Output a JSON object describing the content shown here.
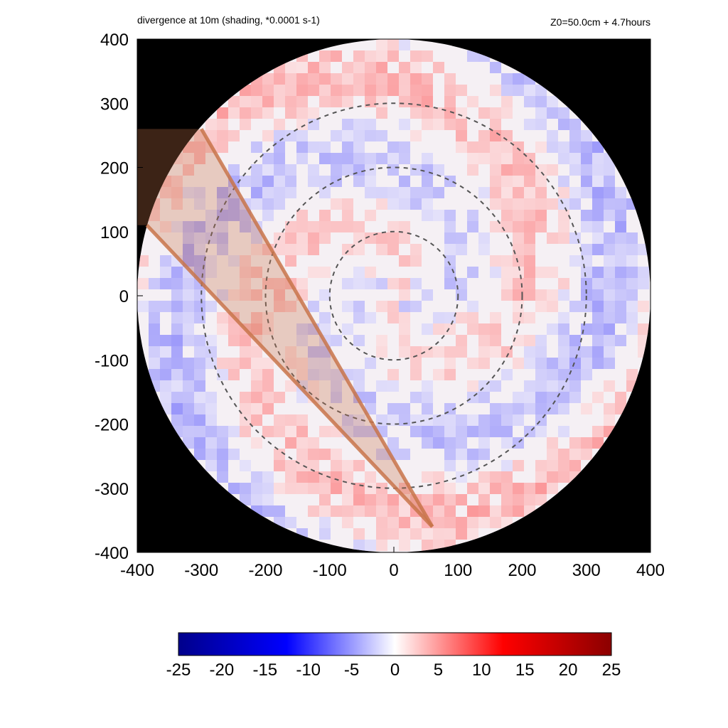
{
  "chart_data": {
    "type": "heatmap",
    "title": "divergence at 10m (shading, *0.0001 s-1)",
    "subtitle": "Z0=50.0cm  + 4.7hours",
    "xlabel": "",
    "ylabel": "",
    "xlim": [
      -400,
      400
    ],
    "ylim": [
      -400,
      400
    ],
    "x_ticks": [
      -400,
      -300,
      -200,
      -100,
      0,
      100,
      200,
      300,
      400
    ],
    "y_ticks": [
      -400,
      -300,
      -200,
      -100,
      0,
      100,
      200,
      300,
      400
    ],
    "x_tick_labels": [
      "-400",
      "-300",
      "-200",
      "-100",
      "0",
      "100",
      "200",
      "300",
      "400"
    ],
    "y_tick_labels": [
      "400",
      "300",
      "200",
      "100",
      "0",
      "-100",
      "-200",
      "-300",
      "-400"
    ],
    "domain_radius": 400,
    "outside_domain_color": "#000000",
    "dashed_circles": [
      {
        "center": [
          0,
          0
        ],
        "radius": 100
      },
      {
        "center": [
          0,
          0
        ],
        "radius": 200
      },
      {
        "center": [
          0,
          0
        ],
        "radius": 300
      }
    ],
    "wedge": {
      "apex": [
        60,
        -360
      ],
      "edge_ends": [
        [
          -300,
          260
        ],
        [
          -385,
          110
        ]
      ],
      "color": "#c8744a"
    },
    "colorbar": {
      "min": -25,
      "max": 25,
      "ticks": [
        -25,
        -20,
        -15,
        -10,
        -5,
        0,
        5,
        10,
        15,
        20,
        25
      ],
      "tick_labels": [
        "-25",
        "-20",
        "-15",
        "-10",
        "-5",
        "0",
        "5",
        "10",
        "15",
        "20",
        "25"
      ],
      "colors": [
        "#00008b",
        "#0000ff",
        "#ffffff",
        "#ff0000",
        "#8b0000"
      ]
    },
    "grid": false,
    "legend": "none"
  }
}
